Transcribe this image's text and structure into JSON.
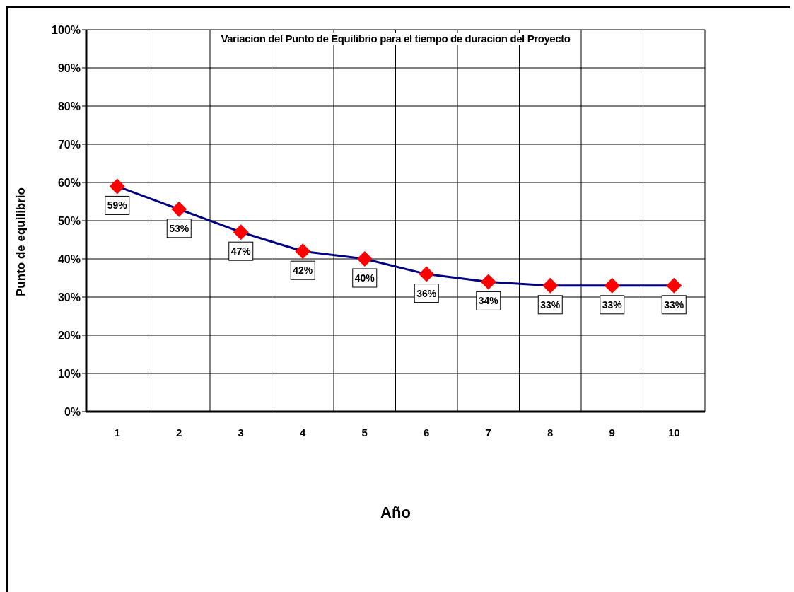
{
  "chart_data": {
    "type": "line",
    "title": "Variacion del Punto de Equilibrio para el tiempo de duracion del Proyecto",
    "xlabel": "Año",
    "ylabel": "Punto de equilibrio",
    "categories": [
      "1",
      "2",
      "3",
      "4",
      "5",
      "6",
      "7",
      "8",
      "9",
      "10"
    ],
    "series": [
      {
        "color": "#000080",
        "colors": [
          "#ff0000",
          "#ff0000",
          "#ff0000",
          "#ff0000",
          "#ff0000",
          "#ff0000",
          "#ff0000",
          "#ff0000",
          "#ff0000",
          "#ff0000"
        ],
        "values": [
          59,
          53,
          47,
          42,
          40,
          36,
          34,
          33,
          33,
          33
        ],
        "value_labels": [
          "59%",
          "53%",
          "47%",
          "42%",
          "40%",
          "36%",
          "34%",
          "33%",
          "33%",
          "33%"
        ]
      }
    ],
    "marker": "diamond",
    "grid": true,
    "legend": false,
    "ylim": [
      0,
      100
    ],
    "yticks": [
      {
        "value": 0,
        "label": "0%"
      },
      {
        "value": 10,
        "label": "10%"
      },
      {
        "value": 20,
        "label": "20%"
      },
      {
        "value": 30,
        "label": "30%"
      },
      {
        "value": 40,
        "label": "40%"
      },
      {
        "value": 50,
        "label": "50%"
      },
      {
        "value": 60,
        "label": "60%"
      },
      {
        "value": 70,
        "label": "70%"
      },
      {
        "value": 80,
        "label": "80%"
      },
      {
        "value": 90,
        "label": "90%"
      },
      {
        "value": 100,
        "label": "100%"
      }
    ]
  }
}
